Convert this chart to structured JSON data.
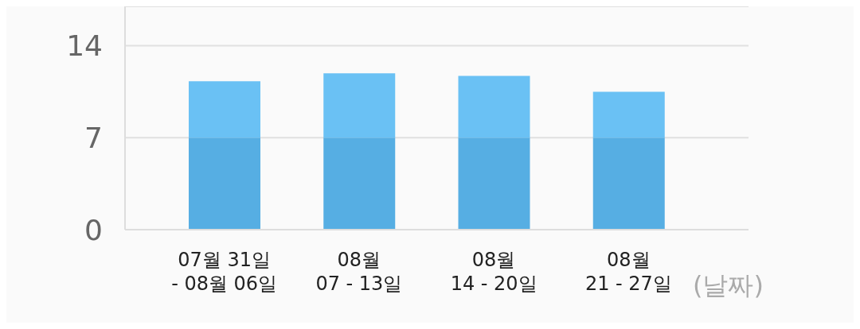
{
  "chart_data": {
    "type": "bar",
    "stacked": true,
    "categories": [
      "07월 31일\n- 08월 06일",
      "08월\n07 - 13일",
      "08월\n14 - 20일",
      "08월\n21 - 27일"
    ],
    "series": [
      {
        "color": "#56aee3",
        "values": [
          7,
          7,
          7,
          7
        ]
      },
      {
        "color": "#6ac1f4",
        "values": [
          4.3,
          4.9,
          4.7,
          3.5
        ]
      }
    ],
    "xlabel": "(날짜)",
    "ylim": [
      0,
      17
    ],
    "yticks": [
      0,
      7,
      14
    ],
    "grid": "y"
  }
}
